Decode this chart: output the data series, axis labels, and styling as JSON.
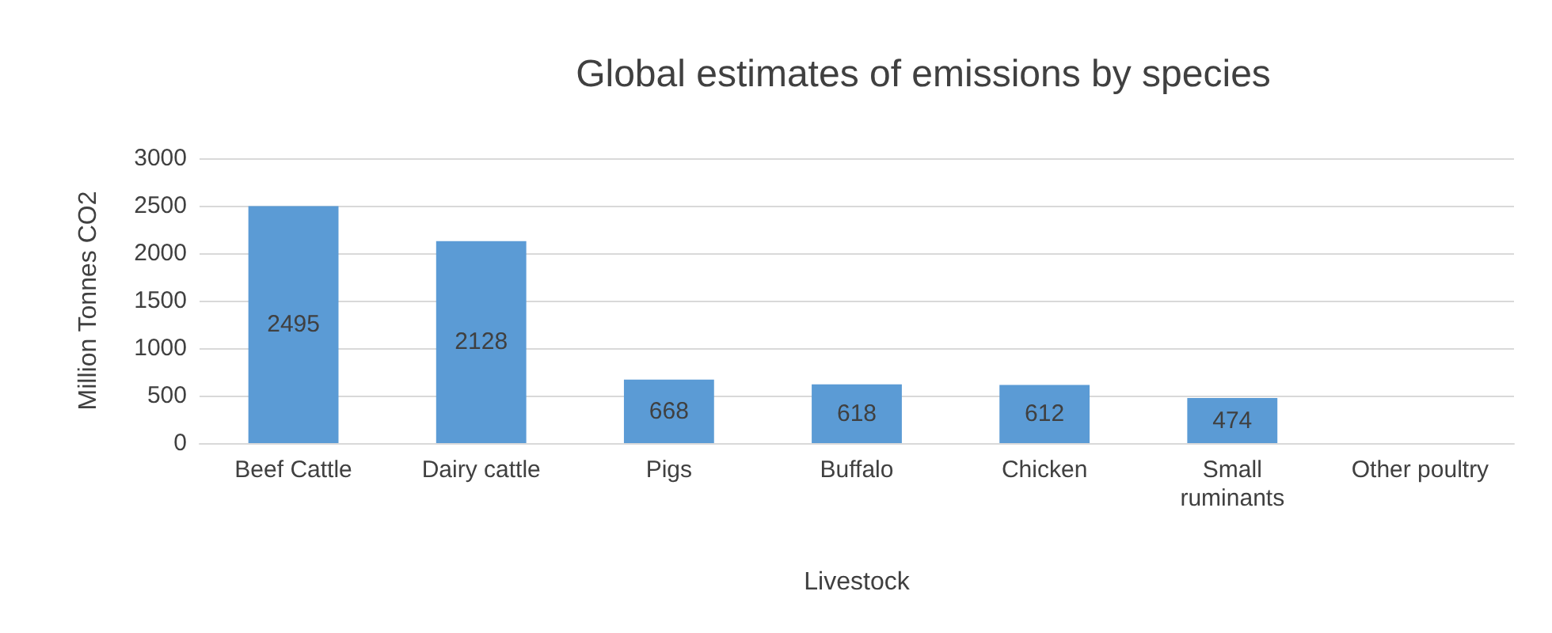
{
  "chart_data": {
    "type": "bar",
    "title": "Global estimates of emissions by species",
    "xlabel": "Livestock",
    "ylabel": "Million Tonnes CO2",
    "categories": [
      "Beef Cattle",
      "Dairy cattle",
      "Pigs",
      "Buffalo",
      "Chicken",
      "Small\nruminants",
      "Other poultry"
    ],
    "values": [
      2495,
      2128,
      668,
      618,
      612,
      474,
      null
    ],
    "color": "#5b9bd5",
    "ylim": [
      0,
      3000
    ],
    "yticks": [
      0,
      500,
      1000,
      1500,
      2000,
      2500,
      3000
    ],
    "grid": "y",
    "data_labels": true
  }
}
